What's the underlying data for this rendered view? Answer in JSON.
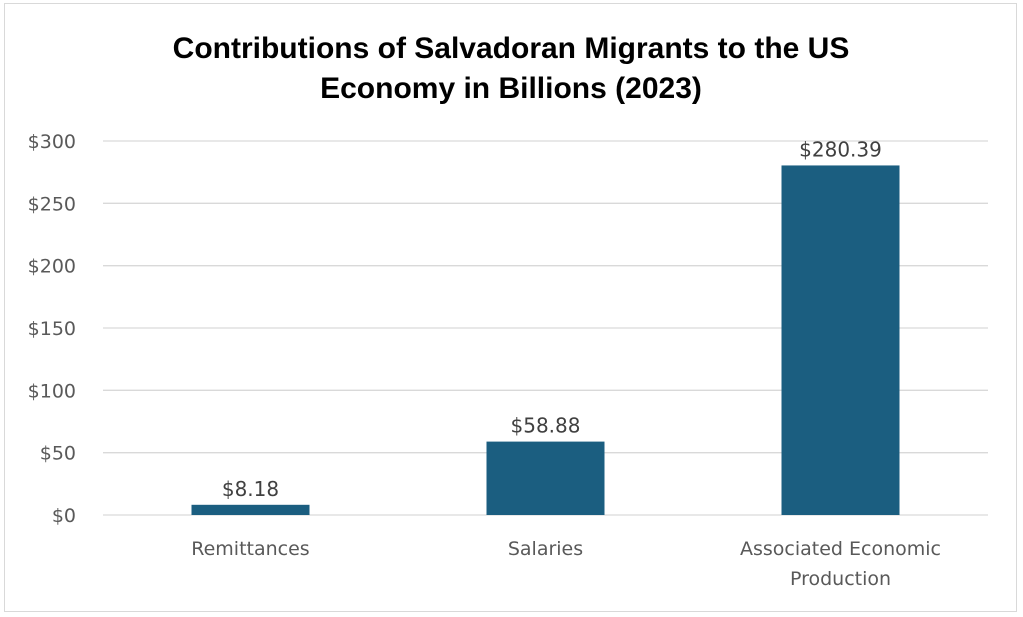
{
  "chart_data": {
    "type": "bar",
    "title_lines": [
      "Contributions of Salvadoran Migrants to the US",
      "Economy in Billions (2023)"
    ],
    "categories": [
      [
        "Remittances"
      ],
      [
        "Salaries"
      ],
      [
        "Associated Economic",
        "Production"
      ]
    ],
    "values": [
      8.18,
      58.88,
      280.39
    ],
    "data_labels": [
      "$8.18",
      "$58.88",
      "$280.39"
    ],
    "ylim": [
      0,
      300
    ],
    "yticks": [
      0,
      50,
      100,
      150,
      200,
      250,
      300
    ],
    "ytick_labels": [
      "$0",
      "$50",
      "$100",
      "$150",
      "$200",
      "$250",
      "$300"
    ],
    "grid": true,
    "bar_color": "#1b5e80",
    "legend": "none"
  }
}
